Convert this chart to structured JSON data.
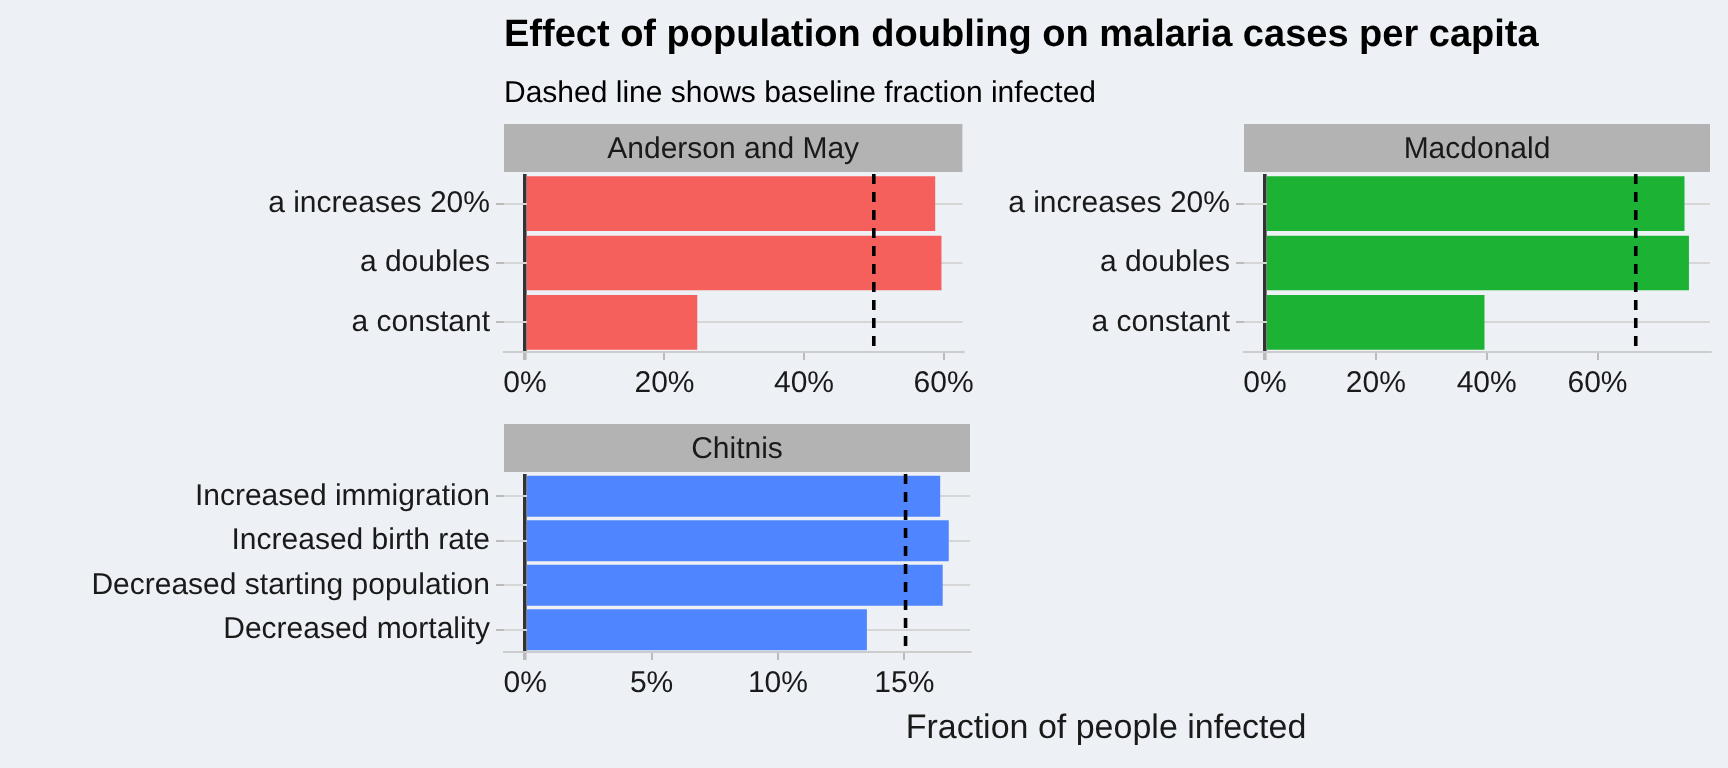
{
  "chart_data": [
    {
      "type": "bar",
      "orientation": "horizontal",
      "title": "Anderson and May",
      "annotations": [
        "Effect of population doubling on malaria cases per capita",
        "Dashed line shows baseline fraction infected"
      ],
      "categories": [
        "a increases 20%",
        "a doubles",
        "a constant"
      ],
      "series": [
        {
          "color": "#f5605c",
          "values": [
            0.588,
            0.597,
            0.247
          ]
        }
      ],
      "xlim": [
        -0.03,
        0.627
      ],
      "xticks": [
        {
          "value": 0,
          "label": "0%"
        },
        {
          "value": 0.2,
          "label": "20%"
        },
        {
          "value": 0.4,
          "label": "40%"
        },
        {
          "value": 0.6,
          "label": "60%"
        }
      ],
      "ref_lines": [
        {
          "axis": "x",
          "value": 0.5,
          "color": "#000000",
          "line_style": "dashed"
        }
      ],
      "grid": "y",
      "legend": false
    },
    {
      "type": "bar",
      "orientation": "horizontal",
      "title": "Macdonald",
      "categories": [
        "a increases 20%",
        "a doubles",
        "a constant"
      ],
      "series": [
        {
          "color": "#1cb334",
          "values": [
            0.757,
            0.765,
            0.396
          ]
        }
      ],
      "xlim": [
        -0.038,
        0.803
      ],
      "xticks": [
        {
          "value": 0,
          "label": "0%"
        },
        {
          "value": 0.2,
          "label": "20%"
        },
        {
          "value": 0.4,
          "label": "40%"
        },
        {
          "value": 0.6,
          "label": "60%"
        }
      ],
      "ref_lines": [
        {
          "axis": "x",
          "value": 0.669,
          "color": "#000000",
          "line_style": "dashed"
        }
      ],
      "grid": "y",
      "legend": false
    },
    {
      "type": "bar",
      "orientation": "horizontal",
      "title": "Chitnis",
      "xlabel": "Fraction of people infected",
      "categories": [
        "Increased immigration",
        "Increased birth rate",
        "Decreased starting population",
        "Decreased mortality"
      ],
      "series": [
        {
          "color": "#4f86ff",
          "values": [
            0.1642,
            0.1676,
            0.1652,
            0.1352
          ]
        }
      ],
      "xlim": [
        -0.0084,
        0.176
      ],
      "xticks": [
        {
          "value": 0,
          "label": "0%"
        },
        {
          "value": 0.05,
          "label": "5%"
        },
        {
          "value": 0.1,
          "label": "10%"
        },
        {
          "value": 0.15,
          "label": "15%"
        }
      ],
      "ref_lines": [
        {
          "axis": "x",
          "value": 0.1505,
          "color": "#000000",
          "line_style": "dashed"
        }
      ],
      "grid": "y",
      "legend": false
    }
  ]
}
